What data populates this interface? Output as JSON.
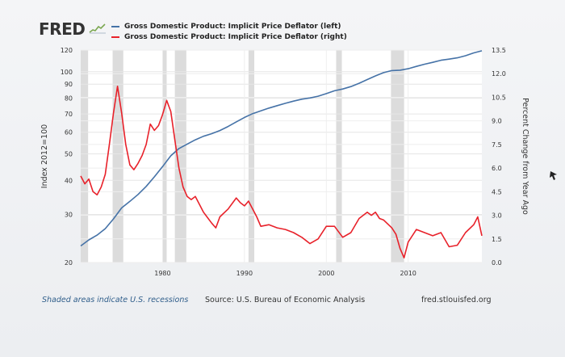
{
  "branding": {
    "logo_text": "FRED",
    "logo_mark": "fred-graph-icon"
  },
  "legend": {
    "items": [
      {
        "label": "Gross Domestic Product: Implicit Price Deflator (left)",
        "color": "#4572a7"
      },
      {
        "label": "Gross Domestic Product: Implicit Price Deflator (right)",
        "color": "#e8212a"
      }
    ]
  },
  "footer": {
    "recession_note": "Shaded areas indicate U.S. recessions",
    "source": "Source: U.S. Bureau of Economic Analysis",
    "url": "fred.stlouisfed.org"
  },
  "chart_data": {
    "type": "line",
    "y_axis_left": {
      "label": "Index 2012=100",
      "scale": "log",
      "range": [
        20,
        120
      ],
      "ticks": [
        20,
        30,
        40,
        50,
        60,
        70,
        80,
        90,
        100,
        120
      ]
    },
    "y_axis_right": {
      "label": "Percent Change from Year Ago",
      "range": [
        0.0,
        13.5
      ],
      "ticks": [
        "0.0",
        "1.5",
        "3.0",
        "4.5",
        "6.0",
        "7.5",
        "9.0",
        "10.5",
        "12.0",
        "13.5"
      ]
    },
    "x_axis": {
      "range": [
        1970,
        2019
      ],
      "ticks": [
        "1980",
        "1990",
        "2000",
        "2010"
      ]
    },
    "grid": true,
    "recessions": [
      [
        1970.0,
        1970.9
      ],
      [
        1973.9,
        1975.2
      ],
      [
        1980.0,
        1980.5
      ],
      [
        1981.5,
        1982.9
      ],
      [
        1990.5,
        1991.2
      ],
      [
        2001.2,
        2001.9
      ],
      [
        2007.9,
        2009.5
      ]
    ],
    "series": [
      {
        "name": "Gross Domestic Product: Implicit Price Deflator (left)",
        "axis": "left",
        "color": "#4572a7",
        "x": [
          1970,
          1971,
          1972,
          1973,
          1974,
          1975,
          1976,
          1977,
          1978,
          1979,
          1980,
          1981,
          1982,
          1983,
          1984,
          1985,
          1986,
          1987,
          1988,
          1989,
          1990,
          1991,
          1992,
          1993,
          1994,
          1995,
          1996,
          1997,
          1998,
          1999,
          2000,
          2001,
          2002,
          2003,
          2004,
          2005,
          2006,
          2007,
          2008,
          2009,
          2010,
          2011,
          2012,
          2013,
          2014,
          2015,
          2016,
          2017,
          2018,
          2019
        ],
        "values": [
          23.0,
          24.2,
          25.2,
          26.6,
          28.9,
          31.7,
          33.5,
          35.5,
          38.0,
          41.2,
          44.9,
          49.2,
          52.3,
          54.3,
          56.3,
          58.0,
          59.3,
          60.9,
          63.0,
          65.5,
          68.0,
          70.2,
          71.9,
          73.6,
          75.1,
          76.6,
          78.0,
          79.3,
          80.1,
          81.3,
          83.1,
          85.1,
          86.4,
          88.2,
          90.7,
          93.6,
          96.5,
          99.2,
          100.9,
          101.3,
          102.5,
          104.6,
          106.5,
          108.2,
          110.1,
          111.2,
          112.4,
          114.4,
          117.2,
          119.3
        ]
      },
      {
        "name": "Gross Domestic Product: Implicit Price Deflator (right)",
        "axis": "right",
        "color": "#e8212a",
        "x": [
          1970.0,
          1970.5,
          1971.0,
          1971.5,
          1972.0,
          1972.5,
          1973.0,
          1973.5,
          1974.0,
          1974.5,
          1975.0,
          1975.5,
          1976.0,
          1976.5,
          1977.0,
          1977.5,
          1978.0,
          1978.5,
          1979.0,
          1979.5,
          1980.0,
          1980.5,
          1981.0,
          1981.5,
          1982.0,
          1982.5,
          1983.0,
          1983.5,
          1984.0,
          1985.0,
          1986.0,
          1986.5,
          1987.0,
          1988.0,
          1989.0,
          1989.5,
          1990.0,
          1990.5,
          1991.0,
          1991.5,
          1992.0,
          1993.0,
          1994.0,
          1995.0,
          1996.0,
          1997.0,
          1998.0,
          1999.0,
          2000.0,
          2001.0,
          2002.0,
          2003.0,
          2004.0,
          2005.0,
          2005.5,
          2006.0,
          2006.5,
          2007.0,
          2008.0,
          2008.5,
          2009.0,
          2009.5,
          2010.0,
          2011.0,
          2012.0,
          2013.0,
          2014.0,
          2015.0,
          2016.0,
          2017.0,
          2018.0,
          2018.5,
          2019.0
        ],
        "values": [
          5.5,
          5.0,
          5.3,
          4.5,
          4.3,
          4.8,
          5.6,
          7.5,
          9.5,
          11.2,
          9.5,
          7.5,
          6.2,
          5.9,
          6.3,
          6.8,
          7.5,
          8.8,
          8.4,
          8.7,
          9.4,
          10.3,
          9.6,
          7.8,
          6.0,
          4.8,
          4.2,
          4.0,
          4.2,
          3.2,
          2.5,
          2.2,
          2.9,
          3.4,
          4.1,
          3.8,
          3.6,
          3.9,
          3.4,
          2.9,
          2.3,
          2.4,
          2.2,
          2.1,
          1.9,
          1.6,
          1.2,
          1.5,
          2.3,
          2.3,
          1.6,
          1.9,
          2.8,
          3.2,
          3.0,
          3.2,
          2.8,
          2.7,
          2.2,
          1.8,
          0.9,
          0.3,
          1.3,
          2.1,
          1.9,
          1.7,
          1.9,
          1.0,
          1.1,
          1.9,
          2.4,
          2.9,
          1.7
        ]
      }
    ]
  }
}
